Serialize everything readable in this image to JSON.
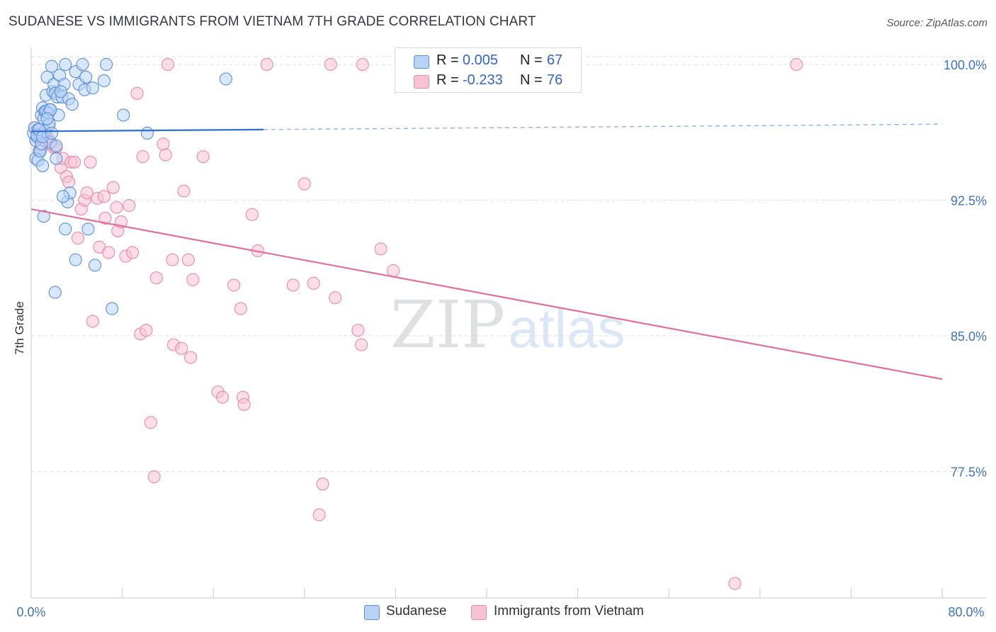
{
  "title": "SUDANESE VS IMMIGRANTS FROM VIETNAM 7TH GRADE CORRELATION CHART",
  "source": "Source: ZipAtlas.com",
  "watermark": {
    "zip": "ZIP",
    "atlas": "atlas"
  },
  "colors": {
    "blue_fill": "#b9d3f5",
    "blue_stroke": "#5a8fdc",
    "blue_line": "#2f6fcf",
    "pink_fill": "#f8c3d4",
    "pink_stroke": "#e98aa8",
    "pink_line": "#e0709a",
    "grid": "#dcdfe3",
    "tick_label": "#3f73c8"
  },
  "legend": {
    "rows": [
      {
        "r_label": "R =",
        "r_value": "0.005",
        "n_label": "N =",
        "n_value": "67"
      },
      {
        "r_label": "R =",
        "r_value": "-0.233",
        "n_label": "N =",
        "n_value": "76"
      }
    ]
  },
  "bottom_legend": [
    "Sudanese",
    "Immigrants from Vietnam"
  ],
  "chart_data": {
    "type": "scatter",
    "title": "SUDANESE VS IMMIGRANTS FROM VIETNAM 7TH GRADE CORRELATION CHART",
    "xlabel": "",
    "ylabel": "7th Grade",
    "xlim": [
      0,
      80
    ],
    "ylim": [
      70.5,
      100.9
    ],
    "x_tick_labels": [
      "0.0%",
      "80.0%"
    ],
    "y_ticks": [
      77.5,
      85.0,
      92.5,
      100.0
    ],
    "y_tick_labels": [
      "77.5%",
      "85.0%",
      "92.5%",
      "100.0%"
    ],
    "grid": true,
    "series": [
      {
        "name": "Sudanese",
        "R": 0.005,
        "N": 67,
        "trend": {
          "x0": 0,
          "y0": 96.3,
          "x1": 20.4,
          "y1": 96.4,
          "dash_to_x": 80,
          "dash_to_y": 96.7
        },
        "points": [
          [
            0.2,
            96.2
          ],
          [
            0.3,
            96.5
          ],
          [
            0.4,
            95.8
          ],
          [
            0.5,
            96.0
          ],
          [
            0.6,
            96.4
          ],
          [
            0.7,
            95.2
          ],
          [
            0.8,
            96.1
          ],
          [
            0.9,
            97.2
          ],
          [
            1.0,
            97.6
          ],
          [
            1.1,
            97.0
          ],
          [
            1.2,
            97.4
          ],
          [
            1.3,
            98.3
          ],
          [
            1.4,
            99.3
          ],
          [
            1.5,
            96.6
          ],
          [
            1.6,
            97.5
          ],
          [
            1.7,
            95.7
          ],
          [
            1.8,
            99.9
          ],
          [
            1.9,
            98.5
          ],
          [
            2.0,
            98.9
          ],
          [
            2.1,
            98.4
          ],
          [
            2.2,
            94.8
          ],
          [
            2.3,
            98.2
          ],
          [
            2.4,
            97.2
          ],
          [
            2.5,
            99.4
          ],
          [
            2.7,
            98.2
          ],
          [
            2.9,
            98.9
          ],
          [
            3.0,
            100.0
          ],
          [
            3.2,
            92.4
          ],
          [
            3.3,
            98.1
          ],
          [
            3.4,
            92.9
          ],
          [
            3.6,
            97.8
          ],
          [
            3.9,
            99.6
          ],
          [
            4.2,
            98.9
          ],
          [
            4.5,
            100.0
          ],
          [
            4.7,
            98.6
          ],
          [
            4.8,
            99.3
          ],
          [
            5.4,
            98.7
          ],
          [
            6.4,
            99.1
          ],
          [
            6.6,
            100.0
          ],
          [
            8.1,
            97.2
          ],
          [
            10.2,
            96.2
          ],
          [
            17.1,
            99.2
          ],
          [
            0.4,
            94.8
          ],
          [
            0.6,
            94.7
          ],
          [
            0.8,
            95.2
          ],
          [
            1.0,
            94.4
          ],
          [
            1.1,
            91.6
          ],
          [
            2.1,
            87.4
          ],
          [
            2.8,
            92.7
          ],
          [
            3.0,
            90.9
          ],
          [
            3.9,
            89.2
          ],
          [
            5.0,
            90.9
          ],
          [
            5.6,
            88.9
          ],
          [
            7.1,
            86.5
          ],
          [
            1.3,
            97.4
          ],
          [
            1.5,
            97.3
          ],
          [
            1.7,
            97.5
          ],
          [
            1.2,
            96.3
          ],
          [
            0.5,
            96.1
          ],
          [
            0.9,
            95.6
          ],
          [
            1.6,
            96.7
          ],
          [
            2.6,
            98.5
          ],
          [
            1.4,
            97.0
          ],
          [
            0.7,
            96.4
          ],
          [
            1.0,
            96.0
          ],
          [
            1.8,
            96.2
          ],
          [
            2.2,
            95.5
          ]
        ]
      },
      {
        "name": "Immigrants from Vietnam",
        "R": -0.233,
        "N": 76,
        "trend": {
          "x0": 0,
          "y0": 92.0,
          "x1": 80,
          "y1": 82.6
        },
        "points": [
          [
            0.3,
            96.5
          ],
          [
            0.5,
            96.2
          ],
          [
            0.7,
            95.9
          ],
          [
            0.9,
            95.4
          ],
          [
            1.2,
            96.2
          ],
          [
            1.5,
            95.8
          ],
          [
            1.7,
            95.6
          ],
          [
            2.0,
            95.4
          ],
          [
            2.2,
            95.4
          ],
          [
            2.6,
            94.3
          ],
          [
            2.8,
            94.8
          ],
          [
            3.1,
            93.8
          ],
          [
            3.3,
            93.5
          ],
          [
            3.5,
            94.6
          ],
          [
            3.8,
            94.6
          ],
          [
            4.1,
            90.4
          ],
          [
            4.4,
            92.0
          ],
          [
            4.7,
            92.5
          ],
          [
            4.9,
            92.9
          ],
          [
            5.2,
            94.6
          ],
          [
            5.4,
            85.8
          ],
          [
            5.8,
            92.6
          ],
          [
            6.0,
            89.9
          ],
          [
            6.4,
            92.7
          ],
          [
            6.5,
            91.5
          ],
          [
            6.8,
            89.6
          ],
          [
            7.2,
            93.2
          ],
          [
            7.5,
            92.1
          ],
          [
            7.6,
            90.8
          ],
          [
            7.9,
            91.3
          ],
          [
            8.3,
            89.4
          ],
          [
            8.6,
            92.2
          ],
          [
            8.9,
            89.6
          ],
          [
            9.3,
            98.4
          ],
          [
            9.6,
            85.1
          ],
          [
            9.8,
            94.9
          ],
          [
            10.1,
            85.3
          ],
          [
            10.5,
            80.2
          ],
          [
            10.8,
            77.2
          ],
          [
            11.0,
            88.2
          ],
          [
            11.6,
            95.6
          ],
          [
            11.8,
            95.0
          ],
          [
            12.0,
            100.0
          ],
          [
            12.4,
            89.2
          ],
          [
            12.5,
            84.5
          ],
          [
            13.2,
            84.3
          ],
          [
            13.4,
            93.0
          ],
          [
            13.8,
            89.2
          ],
          [
            14.0,
            83.8
          ],
          [
            14.2,
            88.1
          ],
          [
            15.1,
            94.9
          ],
          [
            16.4,
            81.9
          ],
          [
            16.8,
            81.6
          ],
          [
            17.8,
            87.8
          ],
          [
            18.4,
            86.5
          ],
          [
            18.6,
            81.6
          ],
          [
            18.7,
            81.2
          ],
          [
            19.4,
            91.7
          ],
          [
            19.9,
            89.7
          ],
          [
            20.7,
            100.0
          ],
          [
            23.0,
            87.8
          ],
          [
            24.0,
            93.4
          ],
          [
            24.8,
            87.9
          ],
          [
            25.3,
            75.1
          ],
          [
            25.6,
            76.8
          ],
          [
            26.3,
            100.0
          ],
          [
            26.7,
            87.1
          ],
          [
            28.7,
            85.3
          ],
          [
            29.0,
            84.5
          ],
          [
            29.1,
            100.0
          ],
          [
            30.7,
            89.8
          ],
          [
            31.8,
            88.6
          ],
          [
            61.8,
            71.3
          ],
          [
            67.2,
            100.0
          ],
          [
            0.8,
            96.1
          ],
          [
            1.4,
            96.0
          ]
        ]
      }
    ]
  }
}
